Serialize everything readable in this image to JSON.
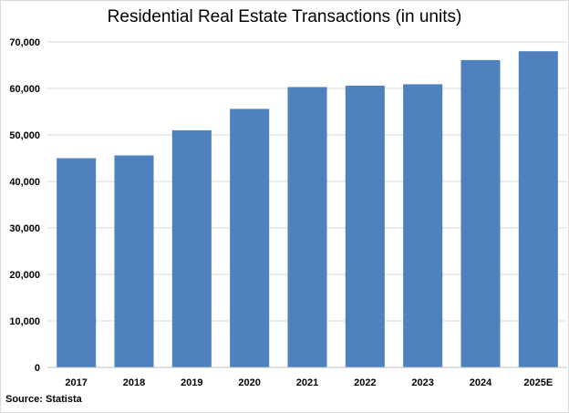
{
  "chart_data": {
    "type": "bar",
    "title": "Residential Real Estate Transactions (in units)",
    "categories": [
      "2017",
      "2018",
      "2019",
      "2020",
      "2021",
      "2022",
      "2023",
      "2024",
      "2025E"
    ],
    "values": [
      45000,
      45600,
      51000,
      55600,
      60300,
      60600,
      60900,
      66100,
      68000
    ],
    "ylim": [
      0,
      70000
    ],
    "yticks": [
      0,
      10000,
      20000,
      30000,
      40000,
      50000,
      60000,
      70000
    ],
    "ytick_labels": [
      "0",
      "10,000",
      "20,000",
      "30,000",
      "40,000",
      "50,000",
      "60,000",
      "70,000"
    ],
    "grid": true,
    "legend": "none",
    "bar_color": "#4f81bd",
    "grid_color": "#d9d9d9"
  },
  "footer": {
    "source": "Source: Statista"
  }
}
